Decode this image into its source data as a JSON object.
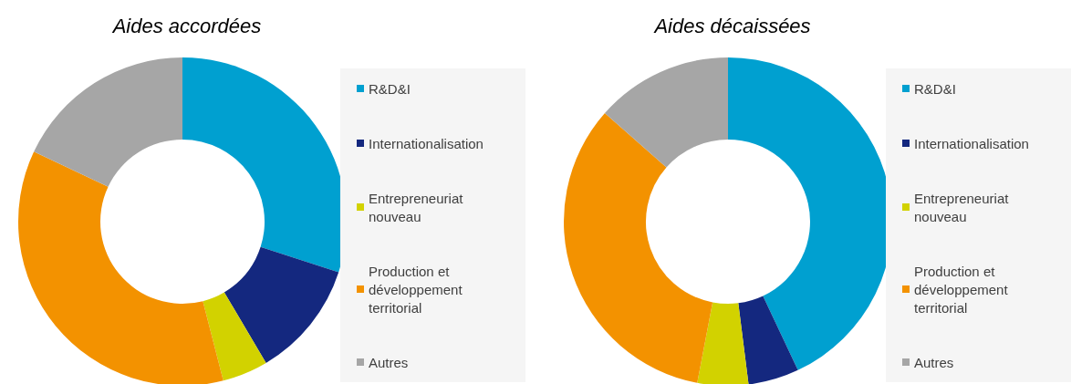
{
  "chart_data": [
    {
      "type": "donut",
      "title": "Aides accordées",
      "categories": [
        "R&D&I",
        "Internationalisation",
        "Entrepreneuriat nouveau",
        "Production et développement territorial",
        "Autres"
      ],
      "values": [
        30,
        11.5,
        4.5,
        36,
        18
      ],
      "colors": [
        "#00a0d0",
        "#14287f",
        "#d2d200",
        "#f39200",
        "#a6a6a6"
      ],
      "legend": "right"
    },
    {
      "type": "donut",
      "title": "Aides décaissées",
      "categories": [
        "R&D&I",
        "Internationalisation",
        "Entrepreneuriat nouveau",
        "Production et développement territorial",
        "Autres"
      ],
      "values": [
        43,
        5,
        5,
        33.5,
        13.5
      ],
      "colors": [
        "#00a0d0",
        "#14287f",
        "#d2d200",
        "#f39200",
        "#a6a6a6"
      ],
      "legend": "right"
    }
  ]
}
